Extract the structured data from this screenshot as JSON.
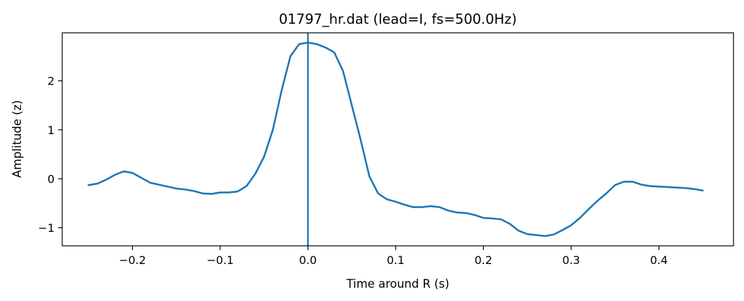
{
  "chart_data": {
    "type": "line",
    "title": "01797_hr.dat (lead=I, fs=500.0Hz)",
    "xlabel": "Time around R (s)",
    "ylabel": "Amplitude (z)",
    "xlim": [
      -0.28,
      0.485
    ],
    "ylim": [
      -1.37,
      2.98
    ],
    "xticks": [
      -0.2,
      -0.1,
      0.0,
      0.1,
      0.2,
      0.3,
      0.4
    ],
    "xtick_labels": [
      "−0.2",
      "−0.1",
      "0.0",
      "0.1",
      "0.2",
      "0.3",
      "0.4"
    ],
    "yticks": [
      -1,
      0,
      1,
      2
    ],
    "ytick_labels": [
      "−1",
      "0",
      "1",
      "2"
    ],
    "grid": false,
    "vline_x": 0.0,
    "colors": {
      "line": "#1f77b4",
      "vline": "#1f77b4"
    },
    "series": [
      {
        "x": [
          -0.25,
          -0.24,
          -0.23,
          -0.22,
          -0.21,
          -0.2,
          -0.19,
          -0.18,
          -0.17,
          -0.16,
          -0.15,
          -0.14,
          -0.13,
          -0.12,
          -0.11,
          -0.1,
          -0.09,
          -0.08,
          -0.07,
          -0.06,
          -0.05,
          -0.04,
          -0.03,
          -0.02,
          -0.01,
          0.0,
          0.01,
          0.02,
          0.03,
          0.04,
          0.05,
          0.06,
          0.07,
          0.08,
          0.09,
          0.1,
          0.11,
          0.12,
          0.13,
          0.14,
          0.15,
          0.16,
          0.17,
          0.18,
          0.19,
          0.2,
          0.21,
          0.22,
          0.23,
          0.24,
          0.25,
          0.26,
          0.27,
          0.28,
          0.29,
          0.3,
          0.31,
          0.32,
          0.33,
          0.34,
          0.35,
          0.36,
          0.37,
          0.38,
          0.39,
          0.4,
          0.41,
          0.42,
          0.43,
          0.44,
          0.45
        ],
        "y": [
          -0.13,
          -0.1,
          -0.02,
          0.08,
          0.15,
          0.12,
          0.02,
          -0.08,
          -0.12,
          -0.16,
          -0.2,
          -0.22,
          -0.25,
          -0.3,
          -0.31,
          -0.28,
          -0.28,
          -0.26,
          -0.15,
          0.1,
          0.45,
          1.0,
          1.8,
          2.5,
          2.75,
          2.78,
          2.75,
          2.68,
          2.58,
          2.2,
          1.5,
          0.8,
          0.05,
          -0.3,
          -0.42,
          -0.47,
          -0.53,
          -0.58,
          -0.58,
          -0.56,
          -0.58,
          -0.65,
          -0.69,
          -0.7,
          -0.74,
          -0.8,
          -0.81,
          -0.83,
          -0.92,
          -1.06,
          -1.13,
          -1.15,
          -1.17,
          -1.14,
          -1.05,
          -0.95,
          -0.8,
          -0.62,
          -0.45,
          -0.3,
          -0.13,
          -0.06,
          -0.06,
          -0.12,
          -0.15,
          -0.16,
          -0.17,
          -0.18,
          -0.19,
          -0.21,
          -0.24
        ]
      }
    ]
  }
}
